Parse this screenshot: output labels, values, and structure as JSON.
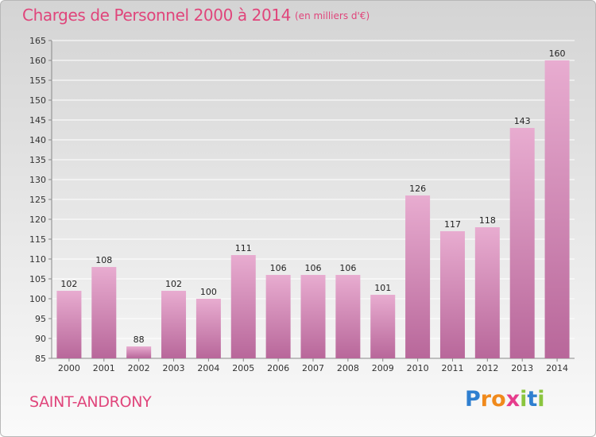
{
  "title": "Charges de Personnel 2000 à 2014",
  "subtitle": "(en milliers d'€)",
  "town": "SAINT-ANDRONY",
  "logo": {
    "text": "Proxiti",
    "letters": [
      {
        "ch": "P",
        "color": "#2f7fd0"
      },
      {
        "ch": "r",
        "color": "#f08a1c"
      },
      {
        "ch": "o",
        "color": "#f08a1c"
      },
      {
        "ch": "x",
        "color": "#e63c8c"
      },
      {
        "ch": "i",
        "color": "#8bc53f"
      },
      {
        "ch": "t",
        "color": "#2f7fd0"
      },
      {
        "ch": "i",
        "color": "#8bc53f"
      }
    ]
  },
  "colors": {
    "accent": "#e0457b",
    "bar_light": "#e8acd0",
    "bar_dark": "#b8679a"
  },
  "chart_data": {
    "type": "bar",
    "categories": [
      "2000",
      "2001",
      "2002",
      "2003",
      "2004",
      "2005",
      "2006",
      "2007",
      "2008",
      "2009",
      "2010",
      "2011",
      "2012",
      "2013",
      "2014"
    ],
    "values": [
      102,
      108,
      88,
      102,
      100,
      111,
      106,
      106,
      106,
      101,
      126,
      117,
      118,
      143,
      160
    ],
    "ylim": [
      85,
      165
    ],
    "yticks": [
      85,
      90,
      95,
      100,
      105,
      110,
      115,
      120,
      125,
      130,
      135,
      140,
      145,
      150,
      155,
      160,
      165
    ],
    "grid": true,
    "xlabel": "",
    "ylabel": ""
  }
}
